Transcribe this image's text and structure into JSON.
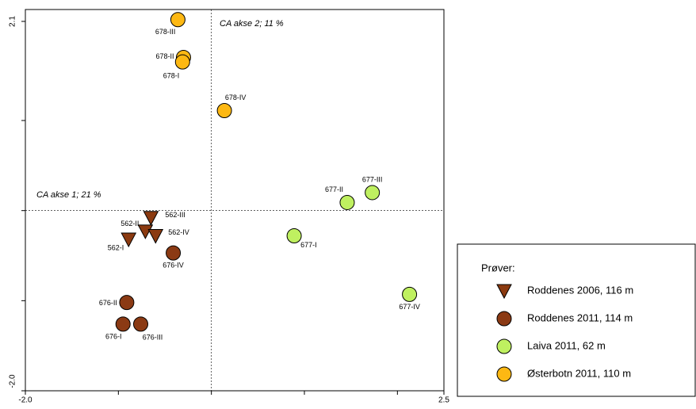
{
  "chart_data": {
    "type": "scatter",
    "axis_annotations": [
      "CA akse 1; 21 %",
      "CA akse 2; 11 %"
    ],
    "xlim": [
      -2.0,
      2.5
    ],
    "ylim": [
      -2.0,
      2.1
    ],
    "xticks": [
      {
        "value": -2.0,
        "label": "-2.0"
      },
      {
        "value": 2.5,
        "label": "2.5"
      }
    ],
    "yticks": [
      {
        "value": -2.0,
        "label": "-2.0"
      },
      {
        "value": 2.1,
        "label": "2.1"
      }
    ],
    "xminor": [
      -1,
      0,
      1,
      2
    ],
    "yminor": [
      -1,
      0,
      1
    ],
    "legend_title": "Prøver:",
    "series": [
      {
        "name": "Roddenes 2006, 116 m",
        "marker": "triangle",
        "color": "#8b3a10",
        "labels": [
          "562-III",
          "562-II",
          "562-IV",
          "562-I"
        ],
        "x": [
          -0.65,
          -0.71,
          -0.6,
          -0.89
        ],
        "values": [
          -0.08,
          -0.23,
          -0.28,
          -0.32
        ]
      },
      {
        "name": "Roddenes 2011, 114 m",
        "marker": "circle",
        "color": "#8b3a14",
        "labels": [
          "676-IV",
          "676-II",
          "676-I",
          "676-III"
        ],
        "x": [
          -0.41,
          -0.91,
          -0.95,
          -0.76
        ],
        "values": [
          -0.47,
          -1.02,
          -1.26,
          -1.26
        ]
      },
      {
        "name": "Laiva 2011, 62 m",
        "marker": "circle",
        "color": "#bff060",
        "labels": [
          "677-II",
          "677-III",
          "677-I",
          "677-IV"
        ],
        "x": [
          1.46,
          1.73,
          0.89,
          2.13
        ],
        "values": [
          0.09,
          0.2,
          -0.28,
          -0.93
        ]
      },
      {
        "name": "Østerbotn 2011, 110 m",
        "marker": "circle",
        "color": "#fdb813",
        "labels": [
          "678-III",
          "678-II",
          "678-I",
          "678-IV"
        ],
        "x": [
          -0.36,
          -0.3,
          -0.31,
          0.14
        ],
        "values": [
          2.12,
          1.7,
          1.65,
          1.11
        ]
      }
    ]
  }
}
